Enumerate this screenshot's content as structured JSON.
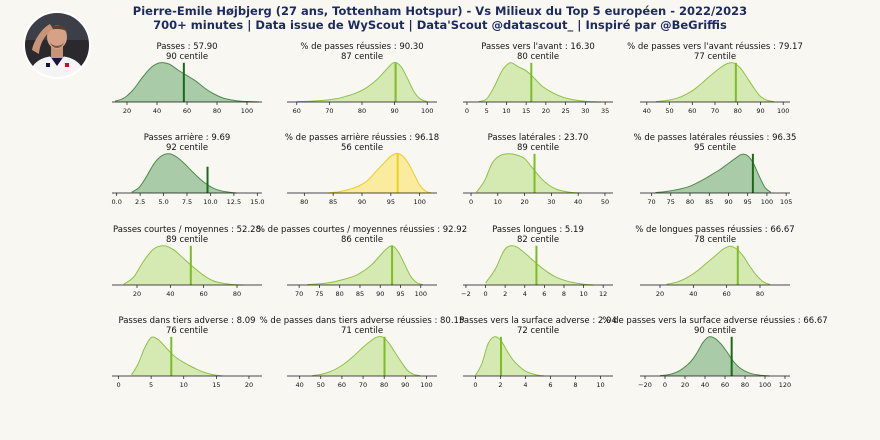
{
  "header": {
    "title": "Pierre-Emile Højbjerg (27 ans, Tottenham Hotspur) - Vs Milieux du Top 5 européen - 2022/2023",
    "subtitle": "700+ minutes | Data issue de WyScout | Data'Scout @datascout_ | Inspiré par @BeGriffis"
  },
  "colors": {
    "background": "#f8f7f2",
    "title": "#1d2a5e",
    "tier_dark": {
      "fill": "#a9cba7",
      "stroke": "#4e8c4c",
      "marker": "#1b6a1b"
    },
    "tier_mid": {
      "fill": "#d5e9b3",
      "stroke": "#8cc346",
      "marker": "#7cbd24"
    },
    "tier_yellow": {
      "fill": "#fbeb9f",
      "stroke": "#eacc2a",
      "marker": "#e8d21e"
    }
  },
  "chart_data": [
    {
      "type": "area",
      "label": "Passes : 57.90",
      "percentile": "90 centile",
      "value": 57.9,
      "tier": "dark",
      "xlim": [
        10,
        110
      ],
      "xticks": [
        "20",
        "40",
        "60",
        "80",
        "100"
      ],
      "xtick_values": [
        20,
        40,
        60,
        80,
        100
      ],
      "x": [
        12,
        18,
        24,
        30,
        36,
        42,
        48,
        54,
        60,
        66,
        72,
        78,
        84,
        90,
        96,
        102,
        108
      ],
      "y": [
        0.02,
        0.1,
        0.3,
        0.6,
        0.86,
        0.98,
        0.95,
        0.8,
        0.66,
        0.52,
        0.34,
        0.2,
        0.1,
        0.05,
        0.02,
        0.01,
        0
      ]
    },
    {
      "type": "area",
      "label": "% de passes réussies : 90.30",
      "percentile": "87 centile",
      "value": 90.3,
      "tier": "mid",
      "xlim": [
        57,
        103
      ],
      "xticks": [
        "60",
        "70",
        "80",
        "90",
        "100"
      ],
      "xtick_values": [
        60,
        70,
        80,
        90,
        100
      ],
      "x": [
        60,
        64,
        68,
        72,
        75,
        78,
        81,
        84,
        86,
        88,
        90,
        92,
        94,
        96,
        98,
        100
      ],
      "y": [
        0.01,
        0.02,
        0.04,
        0.08,
        0.14,
        0.22,
        0.34,
        0.52,
        0.68,
        0.86,
        0.99,
        0.88,
        0.58,
        0.25,
        0.07,
        0.01
      ]
    },
    {
      "type": "area",
      "label": "Passes vers l'avant : 16.30",
      "percentile": "80 centile",
      "value": 16.3,
      "tier": "mid",
      "xlim": [
        -1,
        37
      ],
      "xticks": [
        "0",
        "5",
        "10",
        "15",
        "20",
        "25",
        "30",
        "35"
      ],
      "xtick_values": [
        0,
        5,
        10,
        15,
        20,
        25,
        30,
        35
      ],
      "x": [
        3,
        5,
        7,
        9,
        11,
        13,
        15,
        17,
        19,
        21,
        23,
        25,
        28,
        31,
        34
      ],
      "y": [
        0.01,
        0.08,
        0.4,
        0.8,
        0.98,
        0.88,
        0.78,
        0.6,
        0.4,
        0.27,
        0.17,
        0.1,
        0.04,
        0.01,
        0
      ]
    },
    {
      "type": "area",
      "label": "% de passes vers l'avant réussies : 79.17",
      "percentile": "77 centile",
      "value": 79.17,
      "tier": "mid",
      "xlim": [
        37,
        103
      ],
      "xticks": [
        "40",
        "50",
        "60",
        "70",
        "80",
        "90",
        "100"
      ],
      "xtick_values": [
        40,
        50,
        60,
        70,
        80,
        90,
        100
      ],
      "x": [
        44,
        50,
        55,
        60,
        64,
        68,
        72,
        75,
        78,
        81,
        84,
        87,
        90,
        93,
        96
      ],
      "y": [
        0.01,
        0.05,
        0.13,
        0.28,
        0.46,
        0.66,
        0.84,
        0.95,
        0.98,
        0.86,
        0.62,
        0.36,
        0.14,
        0.04,
        0.01
      ]
    },
    {
      "type": "area",
      "label": "Passes arrière : 9.69",
      "percentile": "92 centile",
      "value": 9.69,
      "tier": "dark",
      "xlim": [
        -0.5,
        15.5
      ],
      "xticks": [
        "0.0",
        "2.5",
        "5.0",
        "7.5",
        "10.0",
        "12.5",
        "15.0"
      ],
      "xtick_values": [
        0,
        2.5,
        5,
        7.5,
        10,
        12.5,
        15
      ],
      "x": [
        1.6,
        2.4,
        3.2,
        4,
        4.8,
        5.6,
        6.4,
        7.2,
        8,
        8.8,
        9.6,
        10.4,
        11.2,
        12,
        12.8
      ],
      "y": [
        0.02,
        0.14,
        0.42,
        0.74,
        0.93,
        0.98,
        0.9,
        0.74,
        0.55,
        0.37,
        0.22,
        0.11,
        0.05,
        0.02,
        0
      ]
    },
    {
      "type": "area",
      "label": "% de passes arrière réussies : 96.18",
      "percentile": "56 centile",
      "value": 96.18,
      "tier": "yellow",
      "xlim": [
        77,
        103
      ],
      "xticks": [
        "80",
        "85",
        "90",
        "95",
        "100"
      ],
      "xtick_values": [
        80,
        85,
        90,
        95,
        100
      ],
      "x": [
        84,
        86,
        88,
        89.5,
        91,
        92.5,
        94,
        95,
        96,
        97,
        98,
        99,
        100,
        101,
        102
      ],
      "y": [
        0,
        0.03,
        0.1,
        0.18,
        0.32,
        0.55,
        0.78,
        0.92,
        0.99,
        0.93,
        0.75,
        0.48,
        0.2,
        0.05,
        0
      ]
    },
    {
      "type": "area",
      "label": "Passes latérales : 23.70",
      "percentile": "89 centile",
      "value": 23.7,
      "tier": "mid",
      "xlim": [
        -3,
        53
      ],
      "xticks": [
        "0",
        "10",
        "20",
        "30",
        "40",
        "50"
      ],
      "xtick_values": [
        0,
        10,
        20,
        30,
        40,
        50
      ],
      "x": [
        2,
        5,
        8,
        11,
        14,
        17,
        20,
        23,
        26,
        29,
        32,
        35,
        38,
        41
      ],
      "y": [
        0.02,
        0.3,
        0.76,
        0.94,
        0.98,
        0.95,
        0.86,
        0.62,
        0.38,
        0.2,
        0.09,
        0.04,
        0.01,
        0
      ]
    },
    {
      "type": "area",
      "label": "% de passes latérales réussies : 96.35",
      "percentile": "95 centile",
      "value": 96.35,
      "tier": "dark",
      "xlim": [
        67,
        106
      ],
      "xticks": [
        "70",
        "75",
        "80",
        "85",
        "90",
        "95",
        "100",
        "105"
      ],
      "xtick_values": [
        70,
        75,
        80,
        85,
        90,
        95,
        100,
        105
      ],
      "x": [
        71,
        74,
        77,
        80,
        83,
        86,
        88,
        90,
        92,
        93.5,
        95,
        96.5,
        98,
        99.5,
        101
      ],
      "y": [
        0.01,
        0.04,
        0.09,
        0.17,
        0.31,
        0.48,
        0.6,
        0.74,
        0.88,
        0.97,
        0.93,
        0.74,
        0.42,
        0.14,
        0.02
      ]
    },
    {
      "type": "area",
      "label": "Passes courtes / moyennes : 52.28",
      "percentile": "89 centile",
      "value": 52.28,
      "tier": "mid",
      "xlim": [
        5,
        95
      ],
      "xticks": [
        "20",
        "40",
        "60",
        "80"
      ],
      "xtick_values": [
        20,
        40,
        60,
        80
      ],
      "x": [
        12,
        18,
        24,
        30,
        36,
        42,
        48,
        54,
        60,
        66,
        72,
        78,
        84
      ],
      "y": [
        0.02,
        0.2,
        0.6,
        0.9,
        0.98,
        0.88,
        0.66,
        0.44,
        0.24,
        0.1,
        0.04,
        0.01,
        0
      ]
    },
    {
      "type": "area",
      "label": "% de passes courtes / moyennes réussies : 92.92",
      "percentile": "86 centile",
      "value": 92.92,
      "tier": "mid",
      "xlim": [
        67,
        104
      ],
      "xticks": [
        "70",
        "75",
        "80",
        "85",
        "90",
        "95",
        "100"
      ],
      "xtick_values": [
        70,
        75,
        80,
        85,
        90,
        95,
        100
      ],
      "x": [
        72,
        75,
        78,
        81,
        84,
        86,
        88,
        90,
        91.5,
        93,
        94.5,
        96,
        97.5,
        99,
        100.5
      ],
      "y": [
        0.01,
        0.03,
        0.07,
        0.14,
        0.24,
        0.36,
        0.52,
        0.74,
        0.9,
        0.98,
        0.82,
        0.52,
        0.22,
        0.06,
        0.01
      ]
    },
    {
      "type": "area",
      "label": "Passes longues : 5.19",
      "percentile": "82 centile",
      "value": 5.19,
      "tier": "mid",
      "xlim": [
        -2.3,
        13
      ],
      "xticks": [
        "−2",
        "0",
        "2",
        "4",
        "6",
        "8",
        "10",
        "12"
      ],
      "xtick_values": [
        -2,
        0,
        2,
        4,
        6,
        8,
        10,
        12
      ],
      "x": [
        0,
        1,
        2,
        3,
        4,
        5,
        6,
        7,
        8,
        9,
        10,
        11
      ],
      "y": [
        0.05,
        0.4,
        0.9,
        0.97,
        0.8,
        0.58,
        0.38,
        0.22,
        0.12,
        0.06,
        0.02,
        0
      ]
    },
    {
      "type": "area",
      "label": "% de longues passes réussies : 66.67",
      "percentile": "78 centile",
      "value": 66.67,
      "tier": "mid",
      "xlim": [
        8,
        98
      ],
      "xticks": [
        "20",
        "40",
        "60",
        "80"
      ],
      "xtick_values": [
        20,
        40,
        60,
        80
      ],
      "x": [
        24,
        30,
        36,
        42,
        48,
        54,
        58,
        62,
        66,
        70,
        74,
        78,
        82,
        86
      ],
      "y": [
        0.02,
        0.07,
        0.18,
        0.34,
        0.55,
        0.76,
        0.9,
        0.97,
        0.9,
        0.72,
        0.46,
        0.24,
        0.08,
        0.01
      ]
    },
    {
      "type": "area",
      "label": "Passes dans tiers adverse : 8.09",
      "percentile": "76 centile",
      "value": 8.09,
      "tier": "mid",
      "xlim": [
        -1,
        22
      ],
      "xticks": [
        "0",
        "5",
        "10",
        "15",
        "20"
      ],
      "xtick_values": [
        0,
        5,
        10,
        15,
        20
      ],
      "x": [
        2,
        3,
        4,
        5,
        6,
        7,
        8,
        9,
        10,
        11,
        12,
        13,
        14,
        15,
        16
      ],
      "y": [
        0.03,
        0.3,
        0.7,
        0.96,
        0.92,
        0.76,
        0.58,
        0.44,
        0.34,
        0.25,
        0.17,
        0.1,
        0.05,
        0.02,
        0
      ]
    },
    {
      "type": "area",
      "label": "% de passes dans tiers adverse réussies : 80.15",
      "percentile": "71 centile",
      "value": 80.15,
      "tier": "mid",
      "xlim": [
        34,
        105
      ],
      "xticks": [
        "40",
        "50",
        "60",
        "70",
        "80",
        "90",
        "100"
      ],
      "xtick_values": [
        40,
        50,
        60,
        70,
        80,
        90,
        100
      ],
      "x": [
        46,
        50,
        54,
        58,
        62,
        66,
        70,
        73,
        76,
        79,
        82,
        85,
        88,
        91,
        94,
        97
      ],
      "y": [
        0.01,
        0.04,
        0.1,
        0.2,
        0.34,
        0.52,
        0.72,
        0.85,
        0.96,
        0.98,
        0.84,
        0.6,
        0.36,
        0.14,
        0.04,
        0.01
      ]
    },
    {
      "type": "area",
      "label": "Passes vers la surface adverse : 2.04",
      "percentile": "72 centile",
      "value": 2.04,
      "tier": "mid",
      "xlim": [
        -1,
        11
      ],
      "xticks": [
        "0",
        "2",
        "4",
        "6",
        "8",
        "10"
      ],
      "xtick_values": [
        0,
        2,
        4,
        6,
        8,
        10
      ],
      "x": [
        0,
        0.5,
        1,
        1.5,
        2,
        2.5,
        3,
        3.5,
        4,
        4.5,
        5,
        5.5
      ],
      "y": [
        0.02,
        0.3,
        0.8,
        0.98,
        0.9,
        0.64,
        0.4,
        0.24,
        0.12,
        0.06,
        0.02,
        0
      ]
    },
    {
      "type": "area",
      "label": "% de passes vers la surface adverse réussies : 66.67",
      "percentile": "90 centile",
      "value": 66.67,
      "tier": "dark",
      "xlim": [
        -25,
        125
      ],
      "xticks": [
        "−20",
        "0",
        "20",
        "40",
        "60",
        "80",
        "100",
        "120"
      ],
      "xtick_values": [
        -20,
        0,
        20,
        40,
        60,
        80,
        100,
        120
      ],
      "x": [
        -5,
        5,
        15,
        25,
        32,
        38,
        44,
        50,
        56,
        62,
        68,
        75,
        85,
        95,
        105
      ],
      "y": [
        0.01,
        0.04,
        0.14,
        0.34,
        0.58,
        0.84,
        0.98,
        0.94,
        0.8,
        0.6,
        0.38,
        0.2,
        0.07,
        0.02,
        0
      ]
    }
  ]
}
